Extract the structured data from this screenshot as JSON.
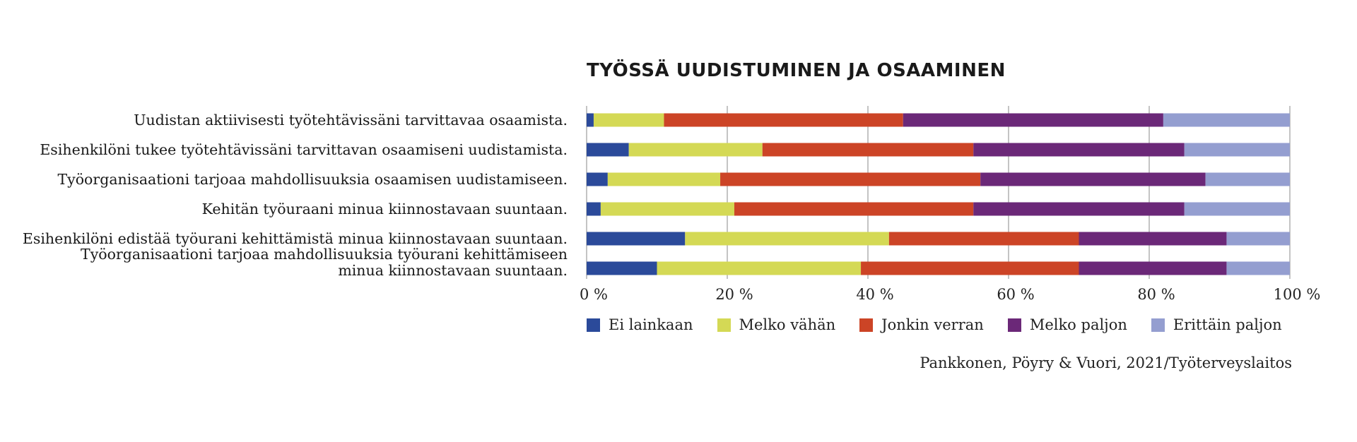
{
  "chart_data": {
    "type": "bar",
    "orientation": "horizontal",
    "stacked": true,
    "title": "TYÖSSÄ UUDISTUMINEN JA OSAAMINEN",
    "source": "Pankkonen, Pöyry & Vuori, 2021/Työterveyslaitos",
    "categories": [
      [
        "Uudistan aktiivisesti työtehtävissäni tarvittavaa osaamista."
      ],
      [
        "Esihenkilöni tukee työtehtävissäni tarvittavan osaamiseni uudistamista."
      ],
      [
        "Työorganisaationi tarjoaa mahdollisuuksia osaamisen uudistamiseen."
      ],
      [
        "Kehitän työuraani minua kiinnostavaan suuntaan."
      ],
      [
        "Esihenkilöni edistää työurani kehittämistä minua kiinnostavaan suuntaan."
      ],
      [
        "Työorganisaationi tarjoaa mahdollisuuksia työurani kehittämiseen",
        "minua kiinnostavaan suuntaan."
      ]
    ],
    "series": [
      {
        "name": "Ei lainkaan",
        "color": "#2b4a9a",
        "values": [
          1,
          6,
          3,
          2,
          14,
          10
        ]
      },
      {
        "name": "Melko vähän",
        "color": "#d4d955",
        "values": [
          10,
          19,
          16,
          19,
          29,
          29
        ]
      },
      {
        "name": "Jonkin verran",
        "color": "#cc4426",
        "values": [
          34,
          30,
          37,
          34,
          27,
          31
        ]
      },
      {
        "name": "Melko paljon",
        "color": "#6b2878",
        "values": [
          37,
          30,
          32,
          30,
          21,
          21
        ]
      },
      {
        "name": "Erittäin paljon",
        "color": "#949ed0",
        "values": [
          18,
          15,
          12,
          15,
          9,
          9
        ]
      }
    ],
    "xlim": [
      0,
      100
    ],
    "xticks": [
      "0 %",
      "20 %",
      "40 %",
      "60 %",
      "80 %",
      "100 %"
    ],
    "grid": true,
    "legend_position": "bottom"
  }
}
